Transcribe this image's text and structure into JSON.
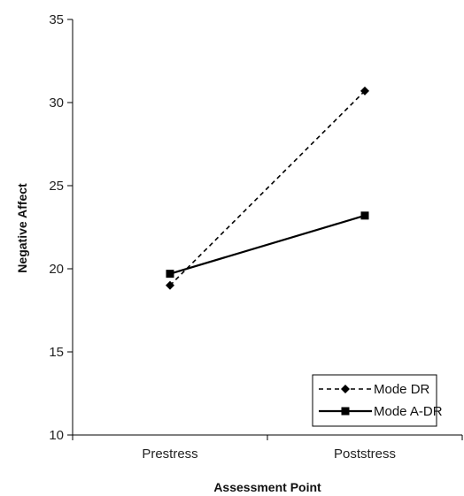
{
  "chart_data": {
    "type": "line",
    "categories": [
      "Prestress",
      "Poststress"
    ],
    "series": [
      {
        "name": "Mode DR",
        "values": [
          19.0,
          30.7
        ],
        "line_style": "dashed",
        "marker": "diamond",
        "color": "#000000"
      },
      {
        "name": "Mode A-DR",
        "values": [
          19.7,
          23.2
        ],
        "line_style": "solid",
        "marker": "square",
        "color": "#000000"
      }
    ],
    "xlabel": "Assessment Point",
    "ylabel": "Negative Affect",
    "ylim": [
      10,
      35
    ],
    "yticks": [
      "10",
      "15",
      "20",
      "25",
      "30",
      "35"
    ],
    "grid": false,
    "legend_position": "bottom-right"
  }
}
